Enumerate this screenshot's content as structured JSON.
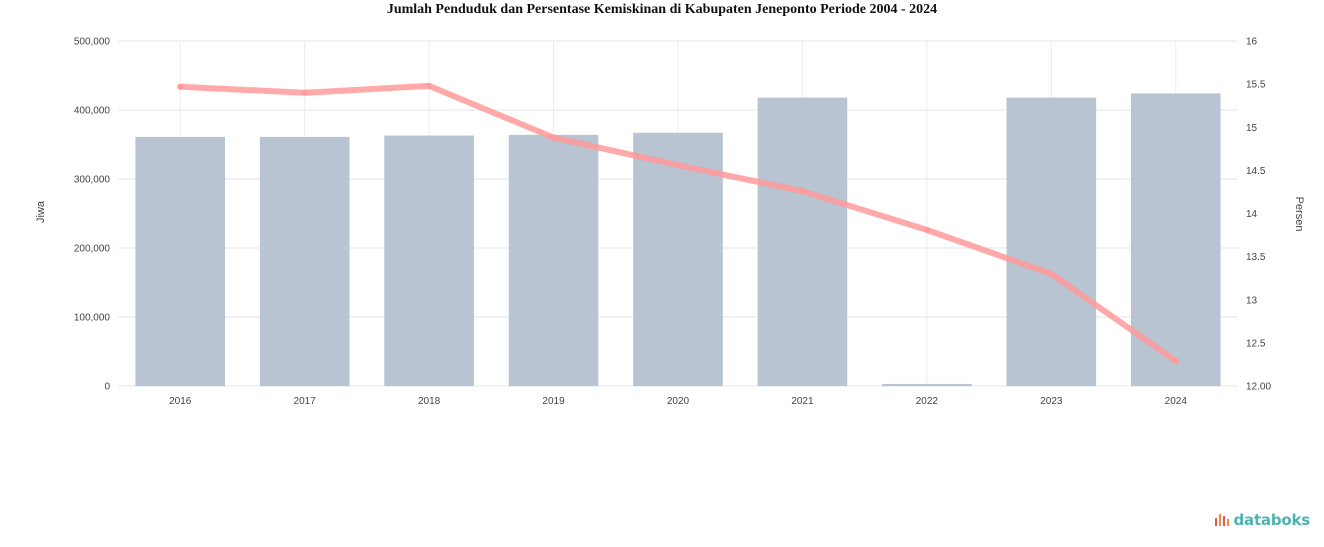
{
  "chart_data": {
    "type": "bar",
    "title": "Jumlah Penduduk dan Persentase Kemiskinan di Kabupaten Jeneponto Periode 2004 - 2024",
    "categories": [
      "2016",
      "2017",
      "2018",
      "2019",
      "2020",
      "2021",
      "2022",
      "2023",
      "2024"
    ],
    "series": [
      {
        "axis": "left",
        "type": "bar",
        "color": "#b8c4d1",
        "values": [
          361000,
          361000,
          363000,
          364000,
          367000,
          418000,
          3000,
          418000,
          424000
        ]
      },
      {
        "axis": "right",
        "type": "line",
        "color": "#ff9a9a",
        "values": [
          15.47,
          15.4,
          15.48,
          14.88,
          14.56,
          14.26,
          13.81,
          13.3,
          12.29
        ]
      }
    ],
    "ylabel": "Jiwa",
    "y2label": "Persen",
    "ylim": [
      0,
      500000
    ],
    "y2lim": [
      12.0,
      16.0
    ],
    "yticks": [
      0,
      100000,
      200000,
      300000,
      400000,
      500000
    ],
    "ytick_labels": [
      "0",
      "100,000",
      "200,000",
      "300,000",
      "400,000",
      "500,000"
    ],
    "y2ticks": [
      12.0,
      12.5,
      13,
      13.5,
      14,
      14.5,
      15,
      15.5,
      16
    ],
    "y2tick_labels": [
      "12.00",
      "12.5",
      "13",
      "13.5",
      "14",
      "14.5",
      "15",
      "15.5",
      "16"
    ],
    "grid": true
  },
  "brand": {
    "name": "databoks",
    "color": "#4bb3b0"
  }
}
